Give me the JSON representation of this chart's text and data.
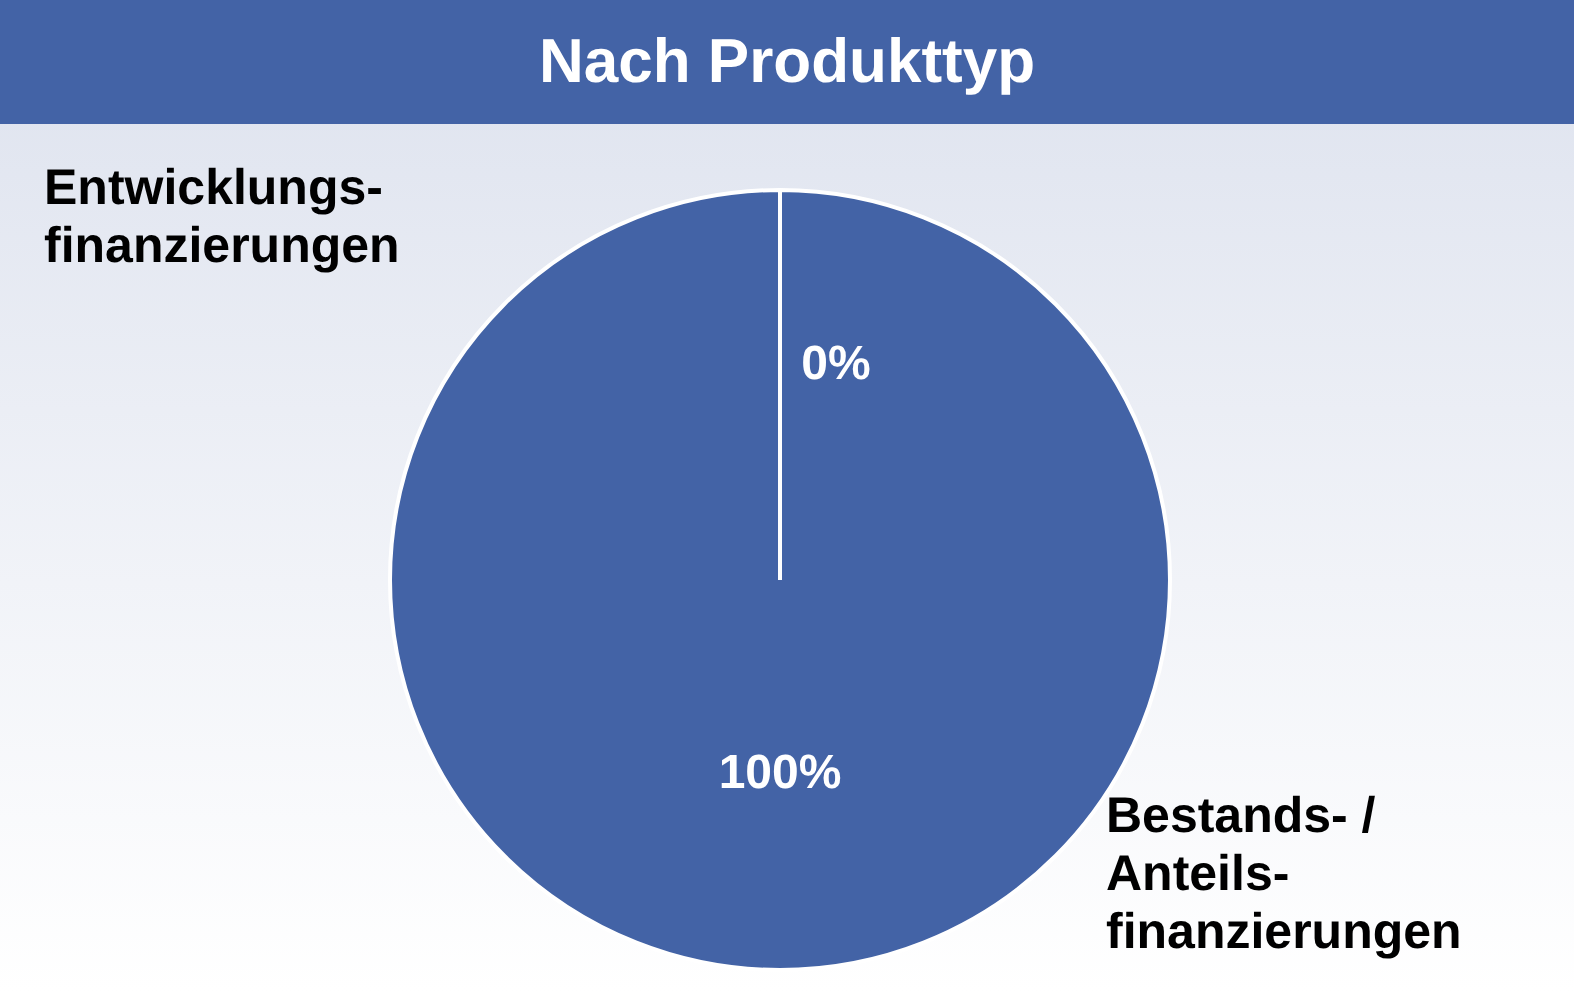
{
  "chart_data": {
    "type": "pie",
    "title": "Nach Produkttyp",
    "categories": [
      "Entwicklungs-finanzierungen",
      "Bestands- / Anteils-finanzierungen"
    ],
    "values": [
      0,
      100
    ],
    "colors": [
      "#4363a6",
      "#4363a6"
    ],
    "value_labels": [
      "0%",
      "100%"
    ],
    "legend": false
  }
}
